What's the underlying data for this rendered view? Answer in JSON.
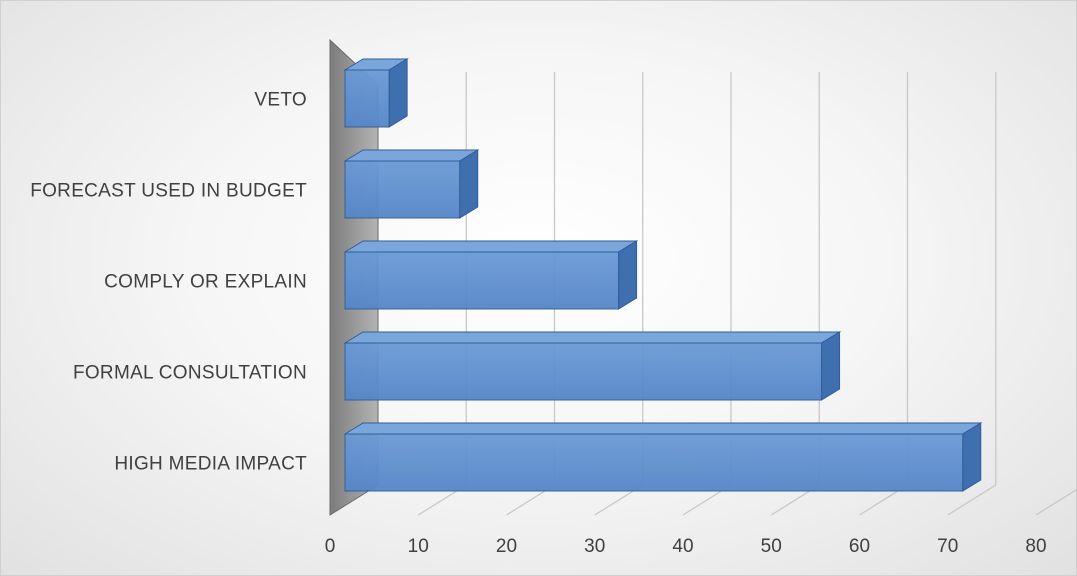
{
  "chart_data": {
    "type": "bar",
    "orientation": "horizontal",
    "style": "3d-clustered-bar",
    "categories": [
      "VETO",
      "FORECAST USED IN BUDGET",
      "COMPLY OR EXPLAIN",
      "FORMAL CONSULTATION",
      "HIGH MEDIA IMPACT"
    ],
    "values": [
      5,
      13,
      31,
      54,
      70
    ],
    "title": "",
    "xlabel": "",
    "ylabel": "",
    "xlim": [
      0,
      80
    ],
    "ticks": [
      "0",
      "10",
      "20",
      "30",
      "40",
      "50",
      "60",
      "70",
      "80"
    ],
    "grid": true,
    "legend": "none",
    "colors": {
      "bar_front": "#5b8fd0",
      "bar_top": "#7aa6dc",
      "bar_side": "#3f6fae",
      "bar_stroke": "#2f5d97",
      "side_wall": "#9a9a9a",
      "gridline": "#c8c8c8"
    }
  }
}
